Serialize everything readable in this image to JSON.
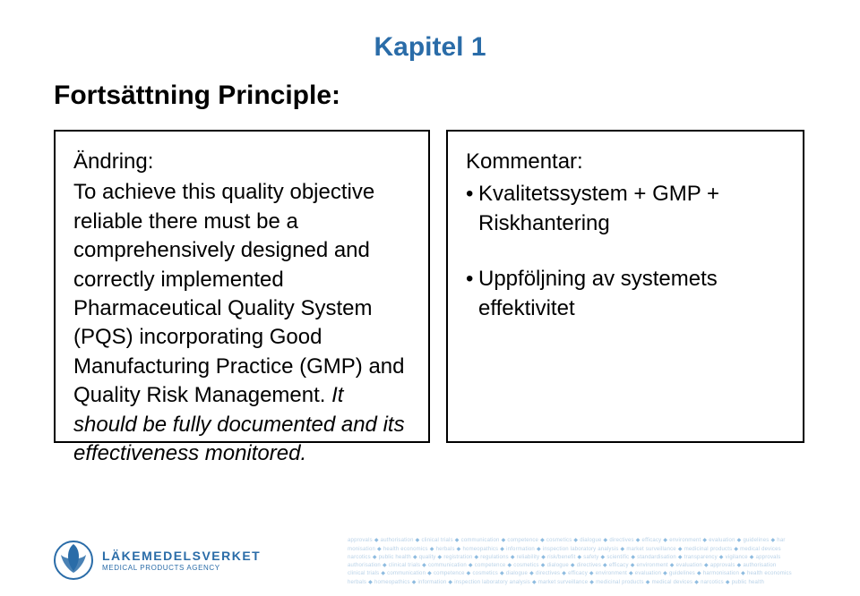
{
  "chapter_title": "Kapitel 1",
  "section_title": "Fortsättning Principle:",
  "left_box": {
    "label": "Ändring:",
    "body_prefix": "To achieve this quality objective reliable there must be a comprehensively designed and correctly implemented Pharmaceutical Quality System (PQS) incorporating Good Manufacturing Practice (GMP) and Quality Risk Management. ",
    "body_italic": "It should be fully documented and its effectiveness monitored."
  },
  "right_box": {
    "label": "Kommentar:",
    "bullets": [
      "Kvalitetssystem + GMP + Riskhantering",
      "Uppföljning av systemets effektivitet"
    ]
  },
  "logo": {
    "name": "LÄKEMEDELSVERKET",
    "sub": "MEDICAL PRODUCTS AGENCY"
  },
  "keywords_lines": [
    [
      "approvals",
      "authorisation",
      "clinical trials",
      "communication",
      "competence",
      "cosmetics",
      "dialogue",
      "directives",
      "efficacy",
      "environment",
      "evaluation",
      "guidelines",
      "har"
    ],
    [
      "monisation",
      "health economics",
      "herbals",
      "homeopathics",
      "information",
      "inspection laboratory analysis",
      "market surveillance",
      "medicinal products",
      "medical devices"
    ],
    [
      "narcotics",
      "public health",
      "quality",
      "registration",
      "regulations",
      "reliability",
      "risk/benefit",
      "safety",
      "scientific",
      "standardisation",
      "transparency",
      "vigilance",
      "approvals"
    ],
    [
      "authorisation",
      "clinical trials",
      "communication",
      "competence",
      "cosmetics",
      "dialogue",
      "directives",
      "efficacy",
      "environment",
      "evaluation",
      "approvals",
      "authorisation"
    ],
    [
      "clinical trials",
      "communication",
      "competence",
      "cosmetics",
      "dialogue",
      "directives",
      "efficacy",
      "environment",
      "evaluation",
      "guidelines",
      "harmonisation",
      "health economics"
    ],
    [
      "herbals",
      "homeopathics",
      "information",
      "inspection laboratory analysis",
      "market surveillance",
      "medicinal products",
      "medical devices",
      "narcotics",
      "public health"
    ]
  ],
  "colors": {
    "heading": "#2a6ca8",
    "text": "#000000",
    "keywords": "#b9d2e8",
    "keywords_sep": "#8fbce0",
    "background": "#ffffff"
  }
}
